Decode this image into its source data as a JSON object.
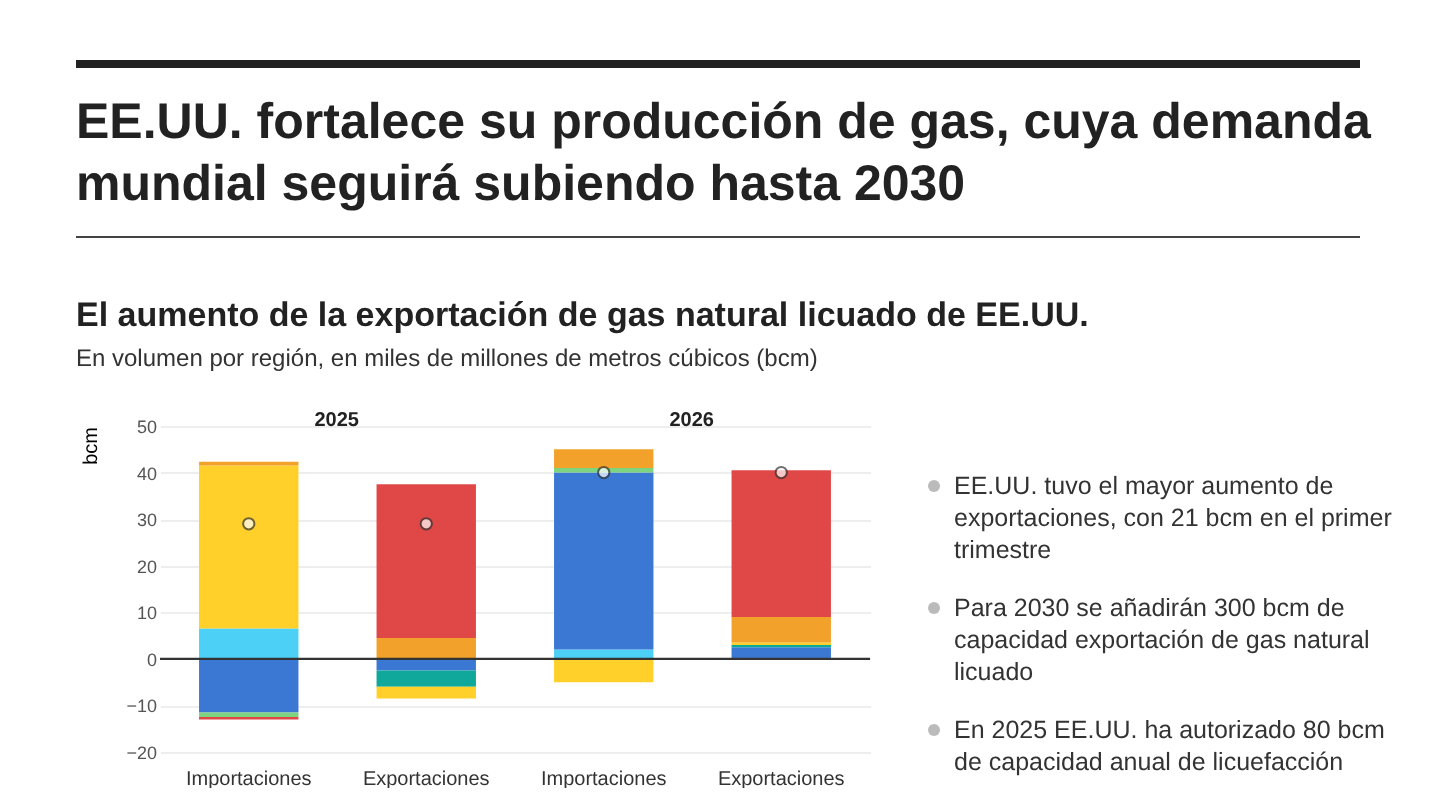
{
  "chart_data": {
    "type": "bar",
    "title": "EE.UU. fortalece su producción de gas, cuya demanda mundial seguirá subiendo hasta 2030",
    "subtitle": "El aumento de la exportación de gas natural licuado de EE.UU.",
    "ylabel": "bcm",
    "annotations": [
      "En volumen por región, en miles de millones de metros cúbicos (bcm)",
      "2025",
      "2026",
      "EE.UU. tuvo el mayor aumento de exportaciones, con 21 bcm en el primer trimestre",
      "Para 2030 se añadirán 300 bcm de capacidad exportación de gas natural licuado",
      "En 2025 EE.UU. ha autorizado 80 bcm de capacidad anual de licuefacción"
    ],
    "categories": [
      "Importaciones",
      "Exportaciones",
      "Importaciones",
      "Exportaciones"
    ],
    "stacked": true,
    "series": [
      {
        "color": "#4dd0f5",
        "values": [
          6.5,
          null,
          2,
          null
        ]
      },
      {
        "color": "#3a78d4",
        "values": [
          -11.5,
          -2.5,
          38,
          2.5
        ]
      },
      {
        "color": "#10a89a",
        "values": [
          null,
          -3.5,
          null,
          0.5
        ]
      },
      {
        "color": "#7ed37e",
        "values": [
          -1,
          null,
          1,
          null
        ]
      },
      {
        "color": "#ffd02a",
        "values": [
          35,
          -2.5,
          -5,
          0.5
        ]
      },
      {
        "color": "#f2a12a",
        "values": [
          0.8,
          4.5,
          4,
          5.5
        ]
      },
      {
        "color": "#e04848",
        "values": [
          -0.5,
          33,
          null,
          31.5
        ]
      },
      {
        "type": "scatter",
        "color": "#ffffff",
        "values": [
          29,
          29,
          40,
          40
        ]
      }
    ],
    "marker": "circle",
    "ylim": [
      -20,
      50
    ],
    "yticks": [
      -20,
      -10,
      0,
      10,
      20,
      30,
      40,
      50
    ],
    "grid": "y",
    "ref_lines": [
      {
        "axis": "y",
        "value": 0,
        "color": "#333333"
      }
    ]
  }
}
